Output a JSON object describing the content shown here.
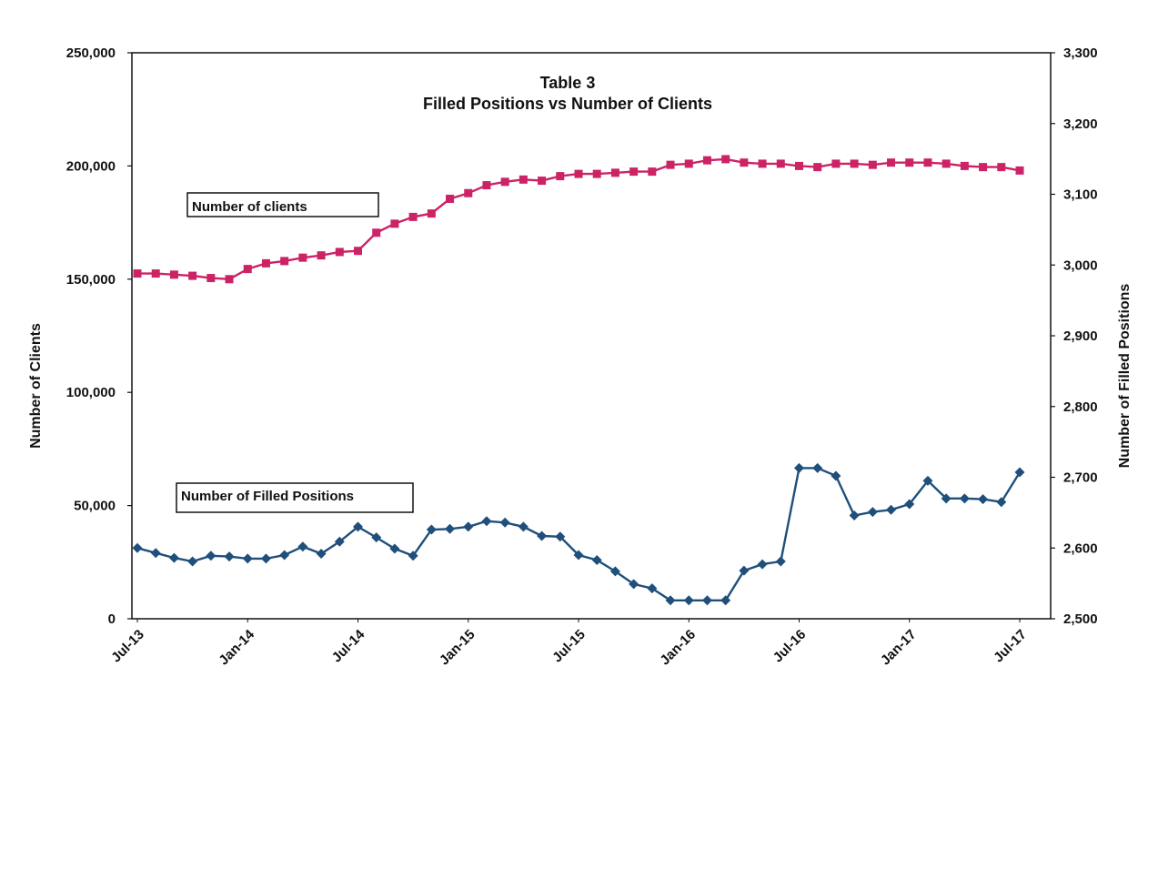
{
  "chart_data": {
    "type": "line",
    "title": "Table 3",
    "subtitle": "Filled Positions vs Number of Clients",
    "ylabel_left": "Number of Clients",
    "ylabel_right": "Number of Filled Positions",
    "ylim_left": [
      0,
      250000
    ],
    "ylim_right": [
      2500,
      3300
    ],
    "yticks_left": [
      "0",
      "50,000",
      "100,000",
      "150,000",
      "200,000",
      "250,000"
    ],
    "yticks_right": [
      "2,500",
      "2,600",
      "2,700",
      "2,800",
      "2,900",
      "3,000",
      "3,100",
      "3,200",
      "3,300"
    ],
    "x_tick_labels": [
      "Jul-13",
      "Jan-14",
      "Jul-14",
      "Jan-15",
      "Jul-15",
      "Jan-16",
      "Jul-16",
      "Jan-17",
      "Jul-17"
    ],
    "x_months": [
      "Jul-13",
      "Aug-13",
      "Sep-13",
      "Oct-13",
      "Nov-13",
      "Dec-13",
      "Jan-14",
      "Feb-14",
      "Mar-14",
      "Apr-14",
      "May-14",
      "Jun-14",
      "Jul-14",
      "Aug-14",
      "Sep-14",
      "Oct-14",
      "Nov-14",
      "Dec-14",
      "Jan-15",
      "Feb-15",
      "Mar-15",
      "Apr-15",
      "May-15",
      "Jun-15",
      "Jul-15",
      "Aug-15",
      "Sep-15",
      "Oct-15",
      "Nov-15",
      "Dec-15",
      "Jan-16",
      "Feb-16",
      "Mar-16",
      "Apr-16",
      "May-16",
      "Jun-16",
      "Jul-16",
      "Aug-16",
      "Sep-16",
      "Oct-16",
      "Nov-16",
      "Dec-16",
      "Jan-17",
      "Feb-17",
      "Mar-17",
      "Apr-17",
      "May-17",
      "Jun-17",
      "Jul-17"
    ],
    "grid": false,
    "series": [
      {
        "name": "Number of clients",
        "axis": "left",
        "color": "#cc2266",
        "marker": "square",
        "values": [
          152500,
          152500,
          152000,
          151500,
          150500,
          150000,
          154500,
          157000,
          158000,
          159500,
          160500,
          162000,
          162500,
          170500,
          174500,
          177500,
          179000,
          185500,
          188000,
          191500,
          193000,
          194000,
          193500,
          195500,
          196500,
          196500,
          197000,
          197500,
          197500,
          200500,
          201000,
          202500,
          203000,
          201500,
          201000,
          201000,
          200000,
          199500,
          201000,
          201000,
          200500,
          201500,
          201500,
          201500,
          201000,
          200000,
          199500,
          199500,
          198000
        ]
      },
      {
        "name": "Number of Filled Positions",
        "axis": "right",
        "color": "#1f4f7a",
        "marker": "diamond",
        "values": [
          2600,
          2593,
          2586,
          2581,
          2589,
          2588,
          2585,
          2585,
          2590,
          2602,
          2592,
          2609,
          2630,
          2615,
          2599,
          2589,
          2626,
          2627,
          2630,
          2638,
          2636,
          2630,
          2617,
          2616,
          2590,
          2583,
          2567,
          2549,
          2543,
          2526,
          2526,
          2526,
          2526,
          2568,
          2577,
          2581,
          2713,
          2713,
          2702,
          2646,
          2651,
          2654,
          2662,
          2695,
          2670,
          2670,
          2669,
          2665,
          2707
        ]
      }
    ]
  }
}
